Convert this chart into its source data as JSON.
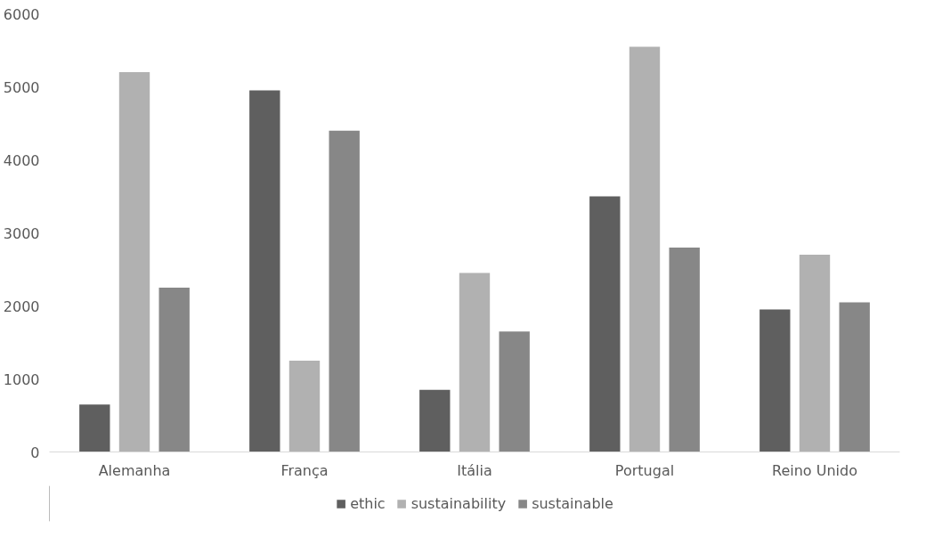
{
  "chart_data": {
    "type": "bar",
    "categories": [
      "Alemanha",
      "França",
      "Itália",
      "Portugal",
      "Reino Unido"
    ],
    "series": [
      {
        "name": "ethic",
        "color": "#5f5f5f",
        "values": [
          650,
          4950,
          850,
          3500,
          1950
        ]
      },
      {
        "name": "sustainability",
        "color": "#b1b1b1",
        "values": [
          5200,
          1250,
          2450,
          5550,
          2700
        ]
      },
      {
        "name": "sustainable",
        "color": "#878787",
        "values": [
          2250,
          4400,
          1650,
          2800,
          2050
        ]
      }
    ],
    "ylim": [
      0,
      6000
    ],
    "yticks": [
      0,
      1000,
      2000,
      3000,
      4000,
      5000,
      6000
    ],
    "grid": false,
    "legend": "bottom"
  }
}
